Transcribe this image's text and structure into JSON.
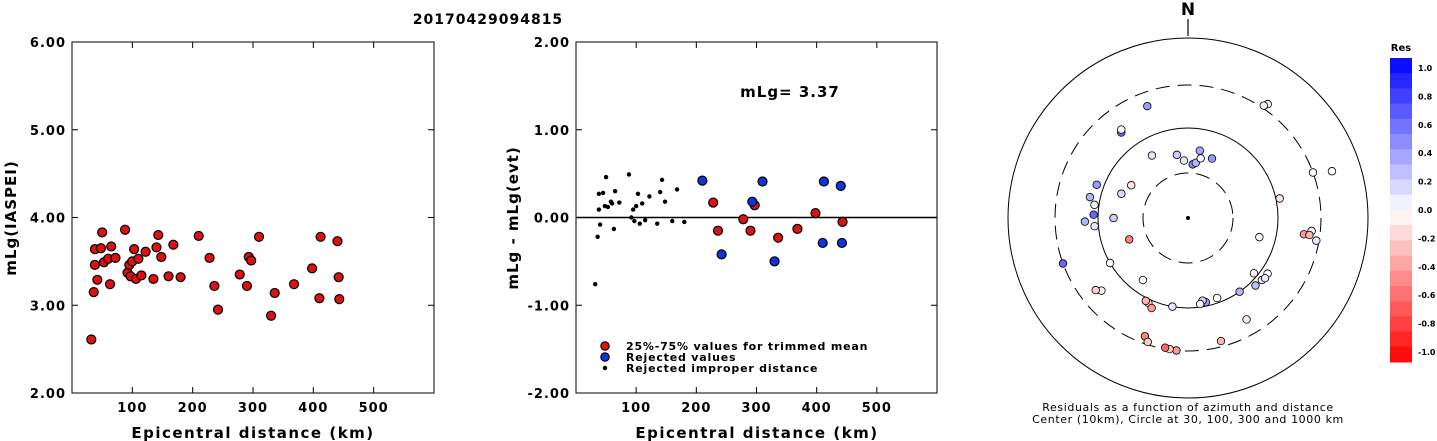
{
  "title": "20170429094815",
  "chart_data": [
    {
      "type": "scatter",
      "xlabel": "Epicentral distance (km)",
      "ylabel": "mLg(IASPEI)",
      "xlim": [
        0,
        600
      ],
      "ylim": [
        2.0,
        6.0
      ],
      "x_ticks": [
        "100",
        "200",
        "300",
        "400",
        "500"
      ],
      "y_ticks": [
        "2.00",
        "3.00",
        "4.00",
        "5.00",
        "6.00"
      ],
      "grid": false,
      "colors": {
        "point_fill": "#dd1111",
        "point_edge": "#000000"
      },
      "series": [
        {
          "points": [
            [
              32,
              2.61
            ],
            [
              36,
              3.15
            ],
            [
              38,
              3.46
            ],
            [
              38,
              3.64
            ],
            [
              42,
              3.29
            ],
            [
              48,
              3.65
            ],
            [
              50,
              3.83
            ],
            [
              53,
              3.49
            ],
            [
              60,
              3.53
            ],
            [
              63,
              3.24
            ],
            [
              65,
              3.67
            ],
            [
              72,
              3.54
            ],
            [
              88,
              3.86
            ],
            [
              92,
              3.37
            ],
            [
              95,
              3.46
            ],
            [
              97,
              3.33
            ],
            [
              100,
              3.5
            ],
            [
              103,
              3.64
            ],
            [
              106,
              3.3
            ],
            [
              110,
              3.53
            ],
            [
              115,
              3.34
            ],
            [
              122,
              3.61
            ],
            [
              135,
              3.3
            ],
            [
              140,
              3.66
            ],
            [
              143,
              3.8
            ],
            [
              148,
              3.55
            ],
            [
              160,
              3.33
            ],
            [
              168,
              3.69
            ],
            [
              180,
              3.32
            ],
            [
              210,
              3.79
            ],
            [
              228,
              3.54
            ],
            [
              236,
              3.22
            ],
            [
              242,
              2.95
            ],
            [
              278,
              3.35
            ],
            [
              290,
              3.22
            ],
            [
              293,
              3.55
            ],
            [
              297,
              3.51
            ],
            [
              310,
              3.78
            ],
            [
              330,
              2.88
            ],
            [
              336,
              3.14
            ],
            [
              368,
              3.24
            ],
            [
              398,
              3.42
            ],
            [
              410,
              3.08
            ],
            [
              412,
              3.78
            ],
            [
              440,
              3.73
            ],
            [
              442,
              3.32
            ],
            [
              443,
              3.07
            ]
          ]
        }
      ]
    },
    {
      "type": "scatter",
      "xlabel": "Epicentral distance (km)",
      "ylabel": "mLg - mLg(evt)",
      "xlim": [
        0,
        600
      ],
      "ylim": [
        -2.0,
        2.0
      ],
      "x_ticks": [
        "100",
        "200",
        "300",
        "400",
        "500"
      ],
      "y_ticks": [
        "-2.00",
        "-1.00",
        "0.00",
        "1.00",
        "2.00"
      ],
      "annotation": "mLg= 3.37",
      "reference_line": 0.0,
      "legend_position": "bottom-left",
      "series": [
        {
          "name": "25%-75% values for trimmed mean",
          "color": "#dd1111",
          "points": [
            [
              228,
              0.17
            ],
            [
              236,
              -0.15
            ],
            [
              278,
              -0.02
            ],
            [
              290,
              -0.15
            ],
            [
              297,
              0.14
            ],
            [
              336,
              -0.23
            ],
            [
              368,
              -0.13
            ],
            [
              398,
              0.05
            ],
            [
              443,
              -0.05
            ]
          ]
        },
        {
          "name": "Rejected values",
          "color": "#1133dd",
          "points": [
            [
              210,
              0.42
            ],
            [
              242,
              -0.42
            ],
            [
              293,
              0.18
            ],
            [
              310,
              0.41
            ],
            [
              330,
              -0.5
            ],
            [
              410,
              -0.29
            ],
            [
              412,
              0.41
            ],
            [
              440,
              0.36
            ],
            [
              442,
              -0.29
            ]
          ]
        },
        {
          "name": "Rejected improper distance",
          "color": "#000000",
          "points": [
            [
              32,
              -0.76
            ],
            [
              36,
              -0.22
            ],
            [
              38,
              0.09
            ],
            [
              38,
              0.27
            ],
            [
              40,
              -0.08
            ],
            [
              45,
              0.28
            ],
            [
              48,
              0.13
            ],
            [
              50,
              0.46
            ],
            [
              53,
              0.12
            ],
            [
              58,
              0.18
            ],
            [
              60,
              0.16
            ],
            [
              63,
              -0.13
            ],
            [
              65,
              0.3
            ],
            [
              72,
              0.17
            ],
            [
              88,
              0.49
            ],
            [
              92,
              0.0
            ],
            [
              95,
              0.09
            ],
            [
              97,
              -0.04
            ],
            [
              100,
              0.13
            ],
            [
              103,
              0.27
            ],
            [
              106,
              -0.07
            ],
            [
              110,
              0.16
            ],
            [
              115,
              -0.03
            ],
            [
              122,
              0.24
            ],
            [
              135,
              -0.07
            ],
            [
              140,
              0.29
            ],
            [
              143,
              0.43
            ],
            [
              148,
              0.18
            ],
            [
              160,
              -0.04
            ],
            [
              168,
              0.32
            ],
            [
              180,
              -0.05
            ]
          ]
        }
      ]
    },
    {
      "type": "scatter",
      "subtype": "polar",
      "north_label": "N",
      "caption_line1": "Residuals as a function of azimuth and distance",
      "caption_line2": "Center (10km), Circle at 30, 100, 300 and 1000 km",
      "rings_km": [
        30,
        100,
        300,
        1000
      ],
      "colorbar": {
        "title": "Res",
        "ticks": [
          "1.0",
          "0.8",
          "0.6",
          "0.4",
          "0.2",
          "0.0",
          "-0.2",
          "-0.4",
          "-0.6",
          "-0.8",
          "-1.0"
        ],
        "max_color": "#0000ff",
        "min_color": "#ff0000"
      },
      "stations": [
        [
          38,
          5,
          0.45
        ],
        [
          40,
          8,
          0.3
        ],
        [
          42,
          356,
          0.1
        ],
        [
          46,
          12,
          0.05
        ],
        [
          50,
          350,
          0.2
        ],
        [
          56,
          10,
          0.35
        ],
        [
          50,
          22,
          0.4
        ],
        [
          62,
          330,
          0.1
        ],
        [
          48,
          250,
          -0.5
        ],
        [
          52,
          300,
          -0.1
        ],
        [
          60,
          290,
          0.15
        ],
        [
          66,
          270,
          0.2
        ],
        [
          65,
          105,
          0.02
        ],
        [
          110,
          78,
          -0.1
        ],
        [
          90,
          130,
          -0.05
        ],
        [
          120,
          125,
          0.02
        ],
        [
          118,
          130,
          0.05
        ],
        [
          122,
          128,
          0.1
        ],
        [
          115,
          135,
          0.25
        ],
        [
          100,
          145,
          0.3
        ],
        [
          90,
          168,
          0.4
        ],
        [
          85,
          170,
          0.2
        ],
        [
          92,
          172,
          -0.05
        ],
        [
          88,
          160,
          0.0
        ],
        [
          100,
          190,
          0.1
        ],
        [
          110,
          205,
          -0.2
        ],
        [
          108,
          207,
          -0.3
        ],
        [
          70,
          216,
          0.0
        ],
        [
          120,
          202,
          -0.4
        ],
        [
          100,
          240,
          0.0
        ],
        [
          110,
          265,
          0.1
        ],
        [
          112,
          272,
          0.6
        ],
        [
          140,
          268,
          0.3
        ],
        [
          112,
          278,
          0.05
        ],
        [
          130,
          282,
          0.3
        ],
        [
          120,
          290,
          0.4
        ],
        [
          160,
          322,
          0.6
        ],
        [
          170,
          323,
          -0.05
        ],
        [
          210,
          340,
          0.4
        ],
        [
          350,
          35,
          -0.1
        ],
        [
          320,
          34,
          0.05
        ],
        [
          300,
          70,
          0.0
        ],
        [
          480,
          72,
          0.0
        ],
        [
          200,
          98,
          -0.4
        ],
        [
          240,
          96,
          -0.05
        ],
        [
          230,
          98,
          -0.3
        ],
        [
          280,
          100,
          0.1
        ],
        [
          200,
          150,
          -0.1
        ],
        [
          260,
          165,
          -0.3
        ],
        [
          250,
          200,
          -0.5
        ],
        [
          280,
          198,
          -0.2
        ],
        [
          300,
          185,
          -0.4
        ],
        [
          295,
          188,
          -0.2
        ],
        [
          290,
          190,
          -0.6
        ],
        [
          180,
          230,
          -0.05
        ],
        [
          200,
          232,
          -0.2
        ],
        [
          300,
          250,
          0.6
        ]
      ]
    }
  ]
}
